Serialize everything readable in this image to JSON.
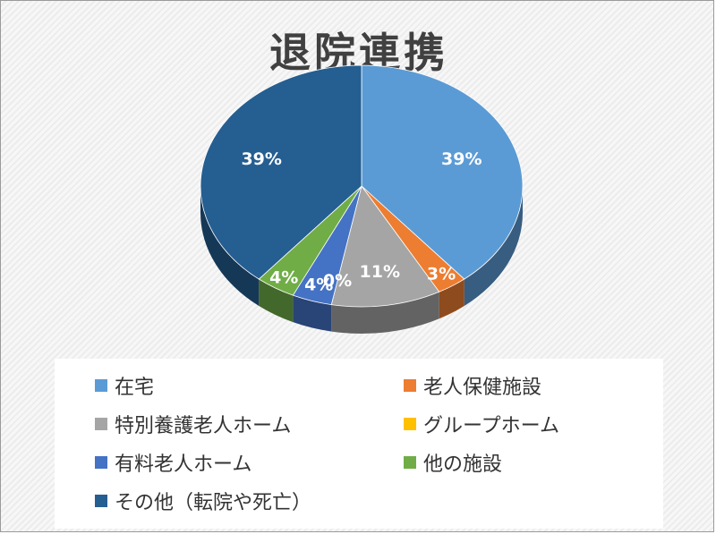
{
  "chart_data": {
    "type": "pie",
    "title": "退院連携",
    "categories": [
      "在宅",
      "老人保健施設",
      "特別養護老人ホーム",
      "グループホーム",
      "有料老人ホーム",
      "他の施設",
      "その他（転院や死亡）"
    ],
    "values": [
      39,
      3,
      11,
      0,
      4,
      4,
      39
    ],
    "data_labels": [
      "39%",
      "3%",
      "11%",
      "0%",
      "4%",
      "4%",
      "39%"
    ],
    "colors": [
      "#5b9bd5",
      "#ed7d31",
      "#a5a5a5",
      "#ffc000",
      "#4472c4",
      "#70ad47",
      "#255e91"
    ],
    "legend_position": "bottom",
    "style": "3d-pie"
  }
}
